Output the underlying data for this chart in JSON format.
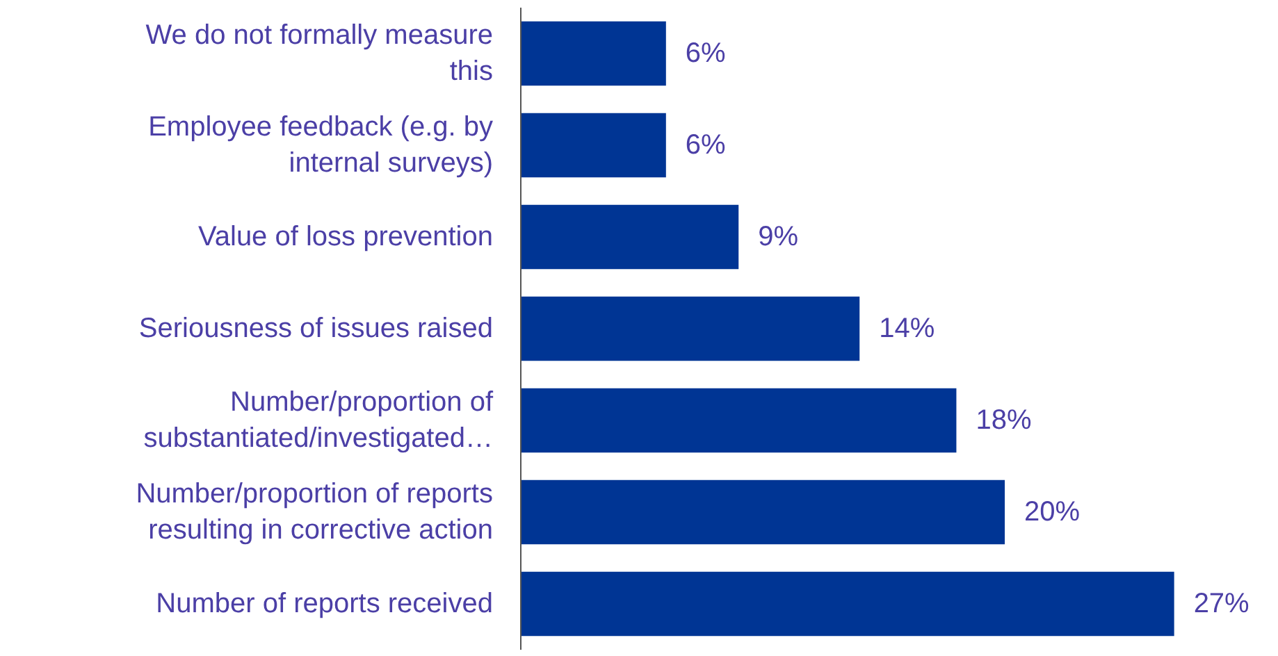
{
  "chart_data": {
    "type": "bar",
    "orientation": "horizontal",
    "categories": [
      "We do not formally measure\nthis",
      "Employee feedback (e.g. by\ninternal surveys)",
      "Value of loss prevention",
      "Seriousness of issues raised",
      "Number/proportion of\nsubstantiated/investigated…",
      "Number/proportion of reports\nresulting in corrective action",
      "Number of reports received"
    ],
    "values": [
      6,
      6,
      9,
      14,
      18,
      20,
      27
    ],
    "value_labels": [
      "6%",
      "6%",
      "9%",
      "14%",
      "18%",
      "20%",
      "27%"
    ],
    "color": "#003594"
  }
}
